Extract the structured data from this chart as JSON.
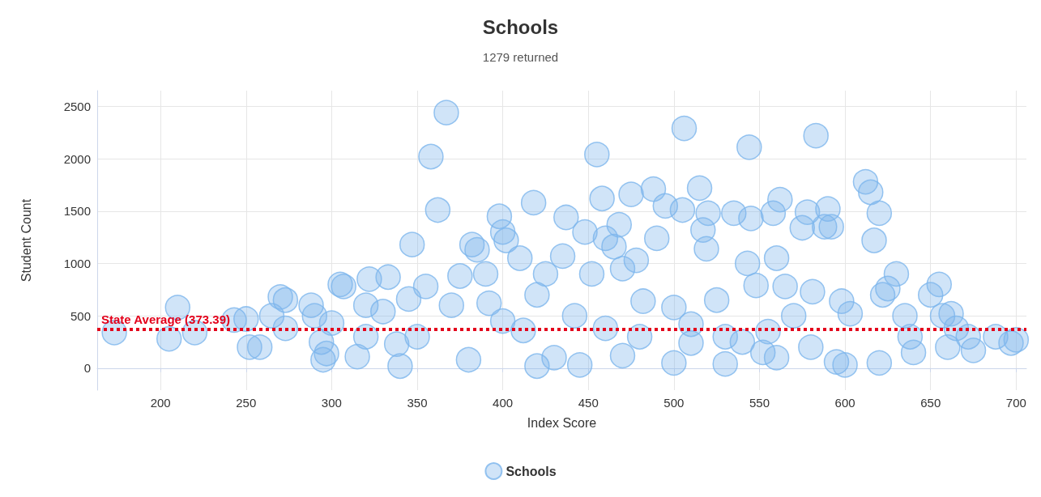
{
  "chart_data": {
    "type": "scatter",
    "title": "Schools",
    "subtitle": "1279 returned",
    "xlabel": "Index Score",
    "ylabel": "Student Count",
    "xlim": [
      163,
      706
    ],
    "xticks": [
      200,
      250,
      300,
      350,
      400,
      450,
      500,
      550,
      600,
      650,
      700
    ],
    "ylim": [
      -210,
      2650
    ],
    "yticks": [
      0,
      500,
      1000,
      1500,
      2000,
      2500
    ],
    "grid": true,
    "legend": "bottom",
    "marker": "circle",
    "ref_lines": [
      {
        "axis": "y",
        "value": 373.39,
        "label": "State Average (373.39)",
        "color": "#e3001b",
        "line_style": "dotted"
      }
    ],
    "series": [
      {
        "name": "Schools",
        "color": "#7cb5ec",
        "x": [
          173,
          205,
          210,
          220,
          243,
          250,
          252,
          258,
          265,
          270,
          273,
          273,
          288,
          290,
          294,
          295,
          297,
          300,
          305,
          307,
          315,
          320,
          322,
          330,
          333,
          338,
          340,
          345,
          347,
          355,
          358,
          362,
          367,
          370,
          375,
          382,
          385,
          390,
          392,
          398,
          400,
          402,
          410,
          412,
          418,
          420,
          425,
          430,
          435,
          437,
          442,
          448,
          452,
          455,
          458,
          460,
          465,
          468,
          470,
          475,
          478,
          482,
          488,
          490,
          495,
          500,
          505,
          506,
          510,
          515,
          517,
          519,
          520,
          525,
          530,
          535,
          543,
          544,
          545,
          548,
          552,
          558,
          560,
          562,
          565,
          570,
          575,
          578,
          581,
          583,
          588,
          590,
          592,
          595,
          598,
          603,
          612,
          615,
          617,
          620,
          622,
          625,
          630,
          635,
          638,
          650,
          655,
          657,
          660,
          662,
          665,
          672,
          675,
          688,
          697,
          700,
          380,
          420,
          445,
          470,
          500,
          530,
          560,
          600,
          620,
          640,
          460,
          540,
          580,
          400,
          350,
          480,
          510,
          555,
          320
        ],
        "values": [
          340,
          280,
          580,
          340,
          460,
          470,
          200,
          200,
          500,
          680,
          650,
          380,
          600,
          500,
          250,
          80,
          140,
          430,
          800,
          780,
          110,
          600,
          850,
          540,
          870,
          230,
          20,
          660,
          1180,
          780,
          2020,
          1510,
          2440,
          600,
          880,
          1180,
          1130,
          900,
          620,
          1450,
          1300,
          1220,
          1050,
          360,
          1580,
          700,
          900,
          100,
          1070,
          1440,
          500,
          1300,
          900,
          2040,
          1620,
          1240,
          1160,
          1370,
          950,
          1660,
          1030,
          640,
          1710,
          1240,
          1550,
          580,
          1510,
          2290,
          240,
          1720,
          1320,
          1140,
          1480,
          650,
          300,
          1480,
          1000,
          2110,
          1430,
          790,
          150,
          1480,
          1050,
          1610,
          780,
          500,
          1340,
          1490,
          730,
          2220,
          1350,
          1520,
          1350,
          60,
          640,
          520,
          1780,
          1680,
          1220,
          1480,
          700,
          760,
          900,
          500,
          300,
          700,
          800,
          500,
          200,
          520,
          380,
          300,
          170,
          300,
          240,
          270,
          80,
          20,
          30,
          120,
          50,
          40,
          100,
          30,
          50,
          150,
          380,
          250,
          200,
          450,
          300,
          300,
          420,
          350,
          300
        ]
      }
    ]
  }
}
